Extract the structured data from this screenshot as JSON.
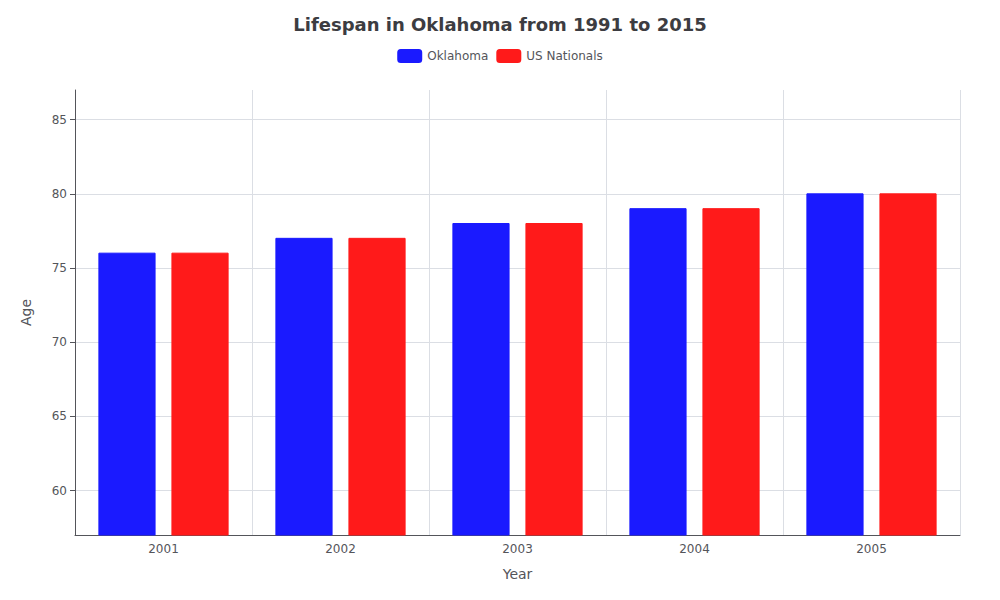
{
  "chart_data": {
    "type": "bar",
    "title": "Lifespan in Oklahoma from 1991 to 2015",
    "x_label": "Year",
    "y_label": "Age",
    "categories": [
      "2001",
      "2002",
      "2003",
      "2004",
      "2005"
    ],
    "series": [
      {
        "name": "Oklahoma",
        "color": "#1a1aff",
        "values": [
          76,
          77,
          78,
          79,
          80
        ]
      },
      {
        "name": "US Nationals",
        "color": "#ff1a1a",
        "values": [
          76,
          77,
          78,
          79,
          80
        ]
      }
    ],
    "ylim": [
      57,
      87
    ],
    "yticks": [
      60,
      65,
      70,
      75,
      80,
      85
    ],
    "grid": true,
    "legend": "top"
  }
}
